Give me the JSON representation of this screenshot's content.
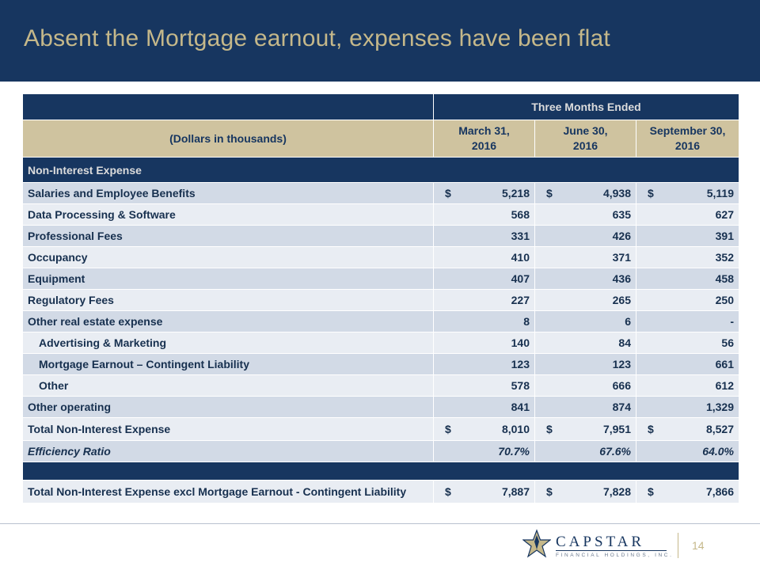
{
  "slide": {
    "title": "Absent the Mortgage earnout, expenses have been flat",
    "page_number": "14"
  },
  "table": {
    "banner": "Three Months Ended",
    "label_header": "(Dollars in thousands)",
    "columns": [
      {
        "line1": "March 31,",
        "line2": "2016"
      },
      {
        "line1": "June 30,",
        "line2": "2016"
      },
      {
        "line1": "September 30,",
        "line2": "2016"
      }
    ],
    "section": "Non-Interest Expense",
    "currency_symbol": "$",
    "rows": [
      {
        "label": "Salaries and Employee Benefits",
        "values": [
          "5,218",
          "4,938",
          "5,119"
        ]
      },
      {
        "label": "Data Processing & Software",
        "values": [
          "568",
          "635",
          "627"
        ]
      },
      {
        "label": "Professional Fees",
        "values": [
          "331",
          "426",
          "391"
        ]
      },
      {
        "label": "Occupancy",
        "values": [
          "410",
          "371",
          "352"
        ]
      },
      {
        "label": "Equipment",
        "values": [
          "407",
          "436",
          "458"
        ]
      },
      {
        "label": "Regulatory Fees",
        "values": [
          "227",
          "265",
          "250"
        ]
      },
      {
        "label": "Other real estate expense",
        "values": [
          "8",
          "6",
          "-"
        ]
      },
      {
        "label": "Advertising & Marketing",
        "values": [
          "140",
          "84",
          "56"
        ]
      },
      {
        "label": "Mortgage Earnout – Contingent Liability",
        "values": [
          "123",
          "123",
          "661"
        ]
      },
      {
        "label": "Other",
        "values": [
          "578",
          "666",
          "612"
        ]
      },
      {
        "label": "Other operating",
        "values": [
          "841",
          "874",
          "1,329"
        ]
      },
      {
        "label": "Total Non-Interest Expense",
        "values": [
          "8,010",
          "7,951",
          "8,527"
        ]
      },
      {
        "label": "Efficiency Ratio",
        "values": [
          "70.7%",
          "67.6%",
          "64.0%"
        ]
      },
      {
        "label": "Total Non-Interest Expense excl Mortgage Earnout - Contingent Liability",
        "values": [
          "7,887",
          "7,828",
          "7,866"
        ]
      }
    ]
  },
  "logo": {
    "wordmark": "CAPSTAR",
    "subtitle": "FINANCIAL HOLDINGS, INC."
  },
  "colors": {
    "navy": "#173660",
    "gold": "#c5b88a",
    "tan": "#cfc39f"
  }
}
